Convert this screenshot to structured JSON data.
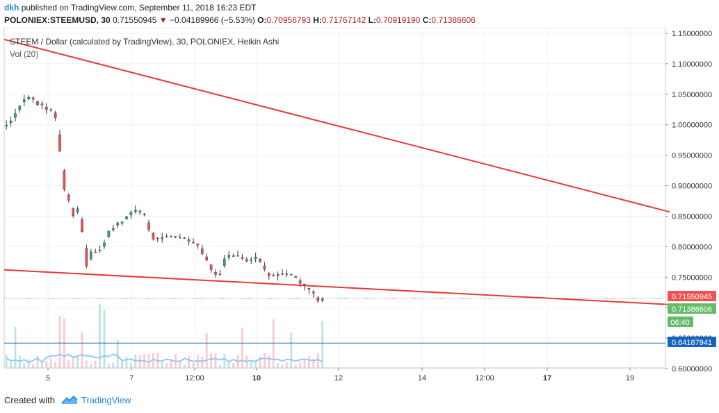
{
  "header": {
    "user": "dkh",
    "published_text": "published on TradingView.com, September 11, 2018 16:23 EDT",
    "symbol": "POLONIEX:STEEMUSD, 30",
    "last_price": "0.71550945",
    "change": "−0.04189966 (−5.53%)",
    "open_label": "O:",
    "open": "0.70956793",
    "high_label": "H:",
    "high": "0.71767142",
    "low_label": "L:",
    "low": "0.70919190",
    "close_label": "C:",
    "close": "0.71386606"
  },
  "chart_data": {
    "type": "candlestick",
    "title": "STEEM / Dollar (calculated by TradingView), 30, POLONIEX, Heikin Ashi",
    "volume_label": "Vol (20)",
    "price_axis": {
      "min": 0.6,
      "max": 1.15,
      "ticks": [
        "1.15000000",
        "1.10000000",
        "1.05000000",
        "1.00000000",
        "0.95000000",
        "0.90000000",
        "0.85000000",
        "0.80000000",
        "0.75000000",
        "0.70000000",
        "0.65000000",
        "0.60000000"
      ]
    },
    "time_axis": {
      "ticks": [
        {
          "label": "5",
          "bold": false
        },
        {
          "label": "7",
          "bold": false
        },
        {
          "label": "12:00",
          "bold": false
        },
        {
          "label": "10",
          "bold": true
        },
        {
          "label": "12",
          "bold": false
        },
        {
          "label": "14",
          "bold": false
        },
        {
          "label": "12:00",
          "bold": false
        },
        {
          "label": "17",
          "bold": true
        },
        {
          "label": "19",
          "bold": false
        }
      ]
    },
    "price_path": [
      [
        0,
        0.995
      ],
      [
        1.5,
        1.005
      ],
      [
        3,
        1.025
      ],
      [
        4.5,
        1.04
      ],
      [
        6,
        1.045
      ],
      [
        7.5,
        1.035
      ],
      [
        9,
        1.03
      ],
      [
        10,
        1.025
      ],
      [
        11,
        1.02
      ],
      [
        12,
        1.0
      ],
      [
        12.6,
        0.95
      ],
      [
        13.3,
        0.9
      ],
      [
        14,
        0.89
      ],
      [
        15,
        0.86
      ],
      [
        15.8,
        0.85
      ],
      [
        16.5,
        0.865
      ],
      [
        17.2,
        0.84
      ],
      [
        18,
        0.8
      ],
      [
        18.6,
        0.765
      ],
      [
        19,
        0.785
      ],
      [
        20,
        0.795
      ],
      [
        21,
        0.79
      ],
      [
        22,
        0.795
      ],
      [
        23,
        0.82
      ],
      [
        25,
        0.835
      ],
      [
        27,
        0.845
      ],
      [
        29,
        0.86
      ],
      [
        31,
        0.855
      ],
      [
        32,
        0.845
      ],
      [
        33,
        0.815
      ],
      [
        34,
        0.81
      ],
      [
        35.5,
        0.815
      ],
      [
        37,
        0.82
      ],
      [
        39,
        0.815
      ],
      [
        41,
        0.813
      ],
      [
        43,
        0.805
      ],
      [
        44,
        0.8
      ],
      [
        45,
        0.78
      ],
      [
        46,
        0.77
      ],
      [
        47,
        0.755
      ],
      [
        48,
        0.75
      ],
      [
        49,
        0.765
      ],
      [
        50,
        0.79
      ],
      [
        51,
        0.785
      ],
      [
        52,
        0.78
      ],
      [
        53,
        0.785
      ],
      [
        54,
        0.78
      ],
      [
        55,
        0.775
      ],
      [
        56,
        0.785
      ],
      [
        57,
        0.78
      ],
      [
        58,
        0.77
      ],
      [
        59,
        0.76
      ],
      [
        60,
        0.75
      ],
      [
        61,
        0.757
      ],
      [
        62,
        0.753
      ],
      [
        63,
        0.758
      ],
      [
        64,
        0.755
      ],
      [
        65,
        0.75
      ],
      [
        66,
        0.745
      ],
      [
        67,
        0.74
      ],
      [
        68,
        0.735
      ],
      [
        69,
        0.73
      ],
      [
        69.8,
        0.72
      ],
      [
        70.6,
        0.712
      ],
      [
        71.4,
        0.714
      ]
    ],
    "candle_count": 72,
    "trendlines": [
      {
        "name": "upper",
        "start": {
          "t": 0,
          "price": 1.14
        },
        "end": {
          "t": 150,
          "price": 0.857
        },
        "color": "#e53935"
      },
      {
        "name": "lower",
        "start": {
          "t": 0,
          "price": 0.762
        },
        "end": {
          "t": 150,
          "price": 0.705
        },
        "color": "#e53935"
      }
    ],
    "support_level": {
      "price": 0.64187941,
      "color": "#1565c0"
    },
    "price_labels": [
      {
        "label": "0.71550945",
        "price": 0.71550945,
        "color": "#ef5350"
      },
      {
        "label": "0.71386606",
        "price": 0.71386606,
        "color": "#66bb6a"
      },
      {
        "label": "06:40",
        "price": 0.6955,
        "color": "#66bb6a"
      },
      {
        "label": "0.64187941",
        "price": 0.64187941,
        "color": "#1565c0"
      }
    ],
    "volume_seed": 37,
    "colors": {
      "up": "#26a69a",
      "down": "#ef5350",
      "wick": "#333333",
      "grid": "#eef0f3",
      "volume_ma": "#90caf9"
    }
  },
  "footer": {
    "created_with": "Created with",
    "brand": "TradingView"
  }
}
